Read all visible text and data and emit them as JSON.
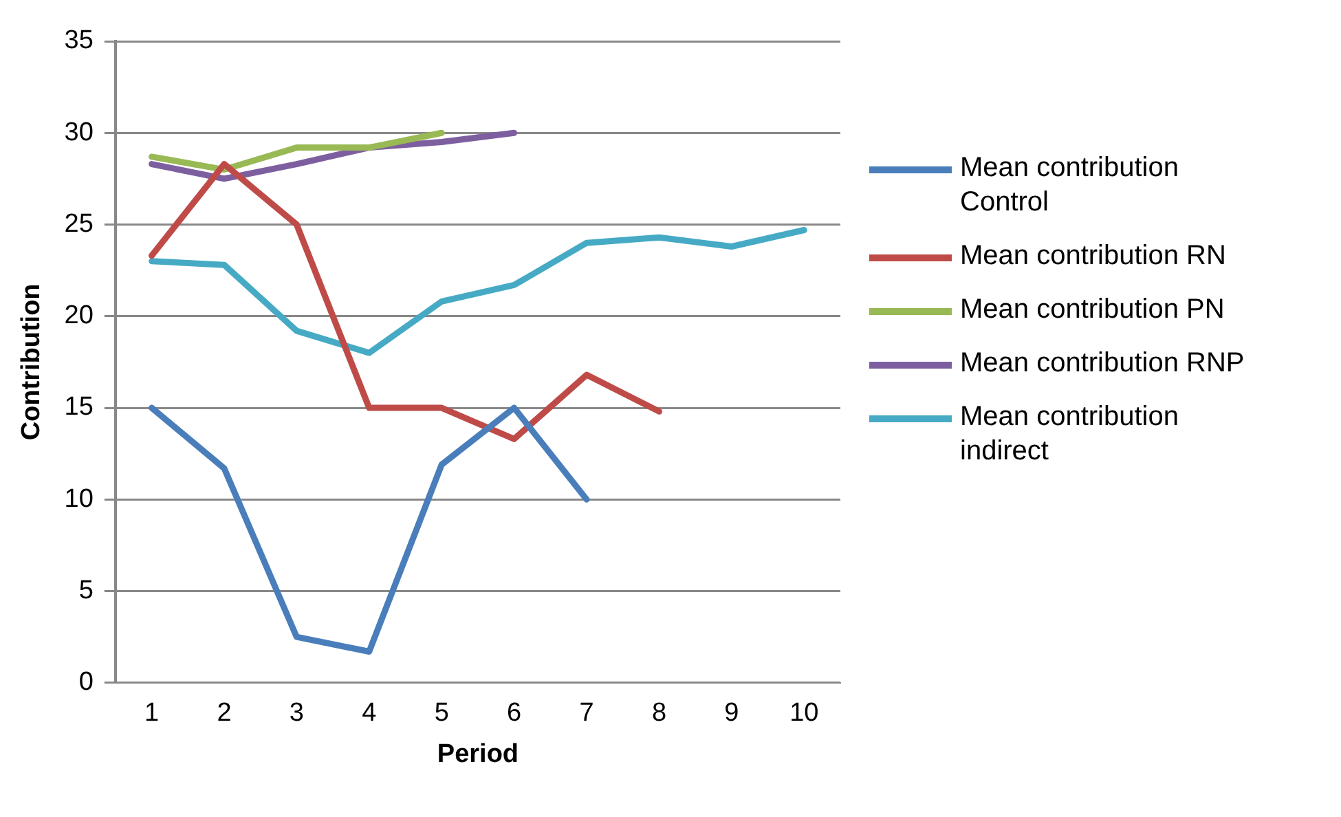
{
  "chart_data": {
    "type": "line",
    "xlabel": "Period",
    "ylabel": "Contribution",
    "categories": [
      "1",
      "2",
      "3",
      "4",
      "5",
      "6",
      "7",
      "8",
      "9",
      "10"
    ],
    "ylim": [
      0,
      35
    ],
    "yticks": [
      0,
      5,
      10,
      15,
      20,
      25,
      30,
      35
    ],
    "grid": "y",
    "legend": "right",
    "marker": "none",
    "line_style": "solid",
    "series": [
      {
        "name": "Mean contribution Control",
        "color": "#4a7ebb",
        "values": [
          15,
          11.7,
          2.5,
          1.7,
          11.9,
          15,
          10,
          null,
          null,
          null
        ]
      },
      {
        "name": "Mean contribution RN",
        "color": "#be4b48",
        "values": [
          23.3,
          28.3,
          25,
          15,
          15,
          13.3,
          16.8,
          14.8,
          null,
          null
        ]
      },
      {
        "name": "Mean contribution PN",
        "color": "#98b954",
        "values": [
          28.7,
          28,
          29.2,
          29.2,
          30,
          null,
          null,
          null,
          null,
          null
        ]
      },
      {
        "name": "Mean contribution RNP",
        "color": "#7d5fa0",
        "values": [
          28.3,
          27.5,
          28.3,
          29.2,
          29.5,
          30,
          null,
          null,
          null,
          null
        ]
      },
      {
        "name": "Mean contribution indirect",
        "color": "#46aac5",
        "values": [
          23,
          22.8,
          19.2,
          18,
          20.8,
          21.7,
          24,
          24.3,
          23.8,
          24.7
        ]
      }
    ]
  }
}
